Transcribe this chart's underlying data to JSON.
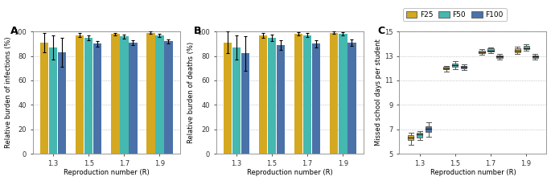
{
  "colors": {
    "F25": "#D4A820",
    "F50": "#45B8B0",
    "F100": "#4A72A8"
  },
  "x_positions": [
    1.3,
    1.5,
    1.7,
    1.9
  ],
  "x_labels": [
    "1.3",
    "1.5",
    "1.7",
    "1.9"
  ],
  "bar_width": 0.048,
  "bar_offsets": [
    -0.05,
    0.0,
    0.05
  ],
  "panel_A": {
    "bars": {
      "F25": [
        91,
        97,
        98,
        99
      ],
      "F50": [
        87,
        95,
        96,
        97
      ],
      "F100": [
        83,
        90,
        91,
        92
      ]
    },
    "errors": {
      "F25": [
        8,
        1.5,
        1.0,
        0.8
      ],
      "F50": [
        10,
        2.0,
        1.5,
        1.2
      ],
      "F100": [
        12,
        2.5,
        2.0,
        1.5
      ]
    },
    "ylabel": "Relative burden of infections (%)",
    "ylim": [
      0,
      100
    ],
    "yticks": [
      0,
      20,
      40,
      60,
      80,
      100
    ]
  },
  "panel_B": {
    "bars": {
      "F25": [
        91,
        97,
        98,
        99
      ],
      "F50": [
        87,
        95,
        97,
        98
      ],
      "F100": [
        82,
        89,
        90,
        91
      ]
    },
    "errors": {
      "F25": [
        9,
        2.0,
        1.2,
        0.8
      ],
      "F50": [
        10,
        2.5,
        1.8,
        1.2
      ],
      "F100": [
        14,
        4.0,
        3.0,
        2.5
      ]
    },
    "ylabel": "Relative burden of deaths (%)",
    "ylim": [
      0,
      100
    ],
    "yticks": [
      0,
      20,
      40,
      60,
      80,
      100
    ]
  },
  "panel_C": {
    "ylabel": "Missed school days per student",
    "ylim": [
      5,
      15
    ],
    "yticks": [
      5,
      7,
      9,
      11,
      13,
      15
    ],
    "boxplot_data": {
      "F25": {
        "1.3": {
          "median": 6.3,
          "q1": 6.1,
          "q3": 6.5,
          "whislo": 5.7,
          "whishi": 6.7
        },
        "1.5": {
          "median": 12.0,
          "q1": 11.9,
          "q3": 12.1,
          "whislo": 11.75,
          "whishi": 12.2
        },
        "1.7": {
          "median": 13.3,
          "q1": 13.2,
          "q3": 13.45,
          "whislo": 13.1,
          "whishi": 13.55
        },
        "1.9": {
          "median": 13.45,
          "q1": 13.3,
          "q3": 13.6,
          "whislo": 13.15,
          "whishi": 13.75
        }
      },
      "F50": {
        "1.3": {
          "median": 6.55,
          "q1": 6.35,
          "q3": 6.7,
          "whislo": 6.1,
          "whishi": 6.85
        },
        "1.5": {
          "median": 12.25,
          "q1": 12.1,
          "q3": 12.4,
          "whislo": 11.9,
          "whishi": 12.55
        },
        "1.7": {
          "median": 13.45,
          "q1": 13.35,
          "q3": 13.6,
          "whislo": 13.2,
          "whishi": 13.7
        },
        "1.9": {
          "median": 13.65,
          "q1": 13.55,
          "q3": 13.8,
          "whislo": 13.4,
          "whishi": 13.95
        }
      },
      "F100": {
        "1.3": {
          "median": 7.05,
          "q1": 6.75,
          "q3": 7.25,
          "whislo": 6.4,
          "whishi": 7.55
        },
        "1.5": {
          "median": 12.1,
          "q1": 12.0,
          "q3": 12.2,
          "whislo": 11.85,
          "whishi": 12.3
        },
        "1.7": {
          "median": 12.95,
          "q1": 12.85,
          "q3": 13.05,
          "whislo": 12.7,
          "whishi": 13.15
        },
        "1.9": {
          "median": 12.95,
          "q1": 12.85,
          "q3": 13.05,
          "whislo": 12.7,
          "whishi": 13.15
        }
      }
    }
  },
  "xlabel": "Reproduction number (R)",
  "panel_labels": [
    "A",
    "B",
    "C"
  ],
  "legend_labels": [
    "F25",
    "F50",
    "F100"
  ],
  "background_color": "#ffffff",
  "plot_bg": "#ffffff",
  "grid_color": "#aaaaaa",
  "spine_color": "#888888"
}
